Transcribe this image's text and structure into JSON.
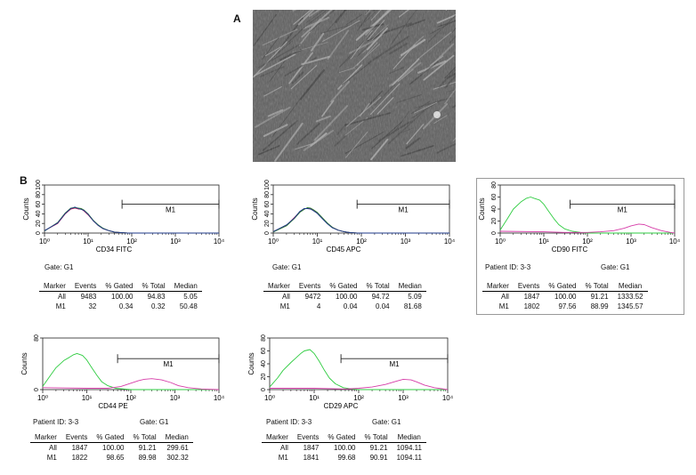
{
  "panel_a_label": "A",
  "panel_b_label": "B",
  "table_headers": [
    "Marker",
    "Events",
    "% Gated",
    "% Total",
    "Median"
  ],
  "chart_data": [
    {
      "type": "area",
      "id": "cd34",
      "xlabel": "CD34 FITC",
      "ylabel": "Counts",
      "x_scale": "log",
      "xlim": [
        1,
        10000
      ],
      "ylim": [
        0,
        100
      ],
      "yticks": [
        0,
        20,
        40,
        60,
        80,
        100
      ],
      "xticks": [
        "10⁰",
        "10¹",
        "10²",
        "10³",
        "10⁴"
      ],
      "gate_label": "M1",
      "gate_range": [
        60,
        10000
      ],
      "gate_y": 60,
      "series": [
        {
          "color": "#c2185b",
          "x": [
            1,
            2,
            3,
            4,
            5,
            6,
            7,
            8,
            10,
            13,
            17,
            22,
            30,
            40,
            55,
            80
          ],
          "y": [
            5,
            20,
            40,
            50,
            52,
            50,
            50,
            46,
            38,
            26,
            16,
            9,
            5,
            2,
            1,
            0
          ]
        },
        {
          "color": "#2e7d32",
          "x": [
            1,
            2,
            3,
            4,
            5,
            6,
            7,
            8,
            10,
            13,
            17,
            22,
            30,
            40,
            55,
            80
          ],
          "y": [
            4,
            22,
            42,
            52,
            53,
            52,
            51,
            48,
            40,
            27,
            17,
            10,
            5,
            2,
            1,
            0
          ]
        },
        {
          "color": "#1e3a8a",
          "x": [
            1,
            2,
            3,
            4,
            5,
            6,
            7,
            8,
            10,
            13,
            17,
            22,
            30,
            40,
            55,
            80
          ],
          "y": [
            5,
            21,
            41,
            51,
            54,
            51,
            49,
            47,
            39,
            26,
            16,
            9,
            5,
            2,
            1,
            0
          ]
        }
      ],
      "header_lines": [],
      "gate_text": "Gate: G1",
      "rows": [
        [
          "All",
          "9483",
          "100.00",
          "94.83",
          "5.05"
        ],
        [
          "M1",
          "32",
          "0.34",
          "0.32",
          "50.48"
        ]
      ]
    },
    {
      "type": "area",
      "id": "cd45",
      "xlabel": "CD45 APC",
      "ylabel": "Counts",
      "x_scale": "log",
      "xlim": [
        1,
        10000
      ],
      "ylim": [
        0,
        100
      ],
      "yticks": [
        0,
        20,
        40,
        60,
        80,
        100
      ],
      "xticks": [
        "10⁰",
        "10¹",
        "10²",
        "10³",
        "10⁴"
      ],
      "gate_label": "M1",
      "gate_range": [
        80,
        10000
      ],
      "gate_y": 60,
      "series": [
        {
          "color": "#c2185b",
          "x": [
            1,
            2,
            3,
            4,
            5,
            6,
            7,
            8,
            10,
            13,
            17,
            22,
            30,
            40,
            55,
            80
          ],
          "y": [
            3,
            16,
            32,
            44,
            50,
            52,
            51,
            48,
            42,
            31,
            20,
            12,
            6,
            3,
            1,
            0
          ]
        },
        {
          "color": "#2e7d32",
          "x": [
            1,
            2,
            3,
            4,
            5,
            6,
            7,
            8,
            10,
            13,
            17,
            22,
            30,
            40,
            55,
            80
          ],
          "y": [
            2,
            15,
            30,
            43,
            49,
            53,
            52,
            49,
            43,
            32,
            21,
            12,
            6,
            3,
            1,
            0
          ]
        },
        {
          "color": "#1e3a8a",
          "x": [
            1,
            2,
            3,
            4,
            5,
            6,
            7,
            8,
            10,
            13,
            17,
            22,
            30,
            40,
            55,
            80
          ],
          "y": [
            3,
            17,
            31,
            45,
            51,
            51,
            50,
            47,
            41,
            30,
            19,
            11,
            6,
            3,
            1,
            0
          ]
        }
      ],
      "header_lines": [],
      "gate_text": "Gate: G1",
      "rows": [
        [
          "All",
          "9472",
          "100.00",
          "94.72",
          "5.09"
        ],
        [
          "M1",
          "4",
          "0.04",
          "0.04",
          "81.68"
        ]
      ]
    },
    {
      "type": "area",
      "id": "cd90",
      "xlabel": "CD90 FITC",
      "ylabel": "Counts",
      "x_scale": "log",
      "xlim": [
        1,
        10000
      ],
      "ylim": [
        0,
        80
      ],
      "yticks": [
        0,
        20,
        40,
        60,
        80
      ],
      "xticks": [
        "10⁰",
        "10¹",
        "10²",
        "10³",
        "10⁴"
      ],
      "gate_label": "M1",
      "gate_range": [
        40,
        10000
      ],
      "gate_y": 48,
      "series": [
        {
          "color": "#2ecc40",
          "x": [
            1,
            1.5,
            2,
            3,
            4,
            5,
            6,
            8,
            10,
            13,
            17,
            22,
            30,
            45,
            70,
            100
          ],
          "y": [
            5,
            25,
            40,
            52,
            58,
            60,
            58,
            55,
            48,
            36,
            24,
            14,
            7,
            3,
            1,
            0
          ]
        },
        {
          "color": "#d63ca8",
          "x": [
            1,
            10,
            30,
            100,
            200,
            400,
            700,
            1000,
            1500,
            2000,
            3000,
            5000,
            8000,
            10000
          ],
          "y": [
            3,
            2,
            1,
            1,
            2,
            4,
            8,
            12,
            15,
            14,
            9,
            4,
            1,
            0
          ]
        }
      ],
      "header_lines": [
        "Patient ID: 3-3",
        "Gate: G1"
      ],
      "gate_text": "",
      "rows": [
        [
          "All",
          "1847",
          "100.00",
          "91.21",
          "1333.52"
        ],
        [
          "M1",
          "1802",
          "97.56",
          "88.99",
          "1345.57"
        ]
      ]
    },
    {
      "type": "area",
      "id": "cd44",
      "xlabel": "CD44 PE",
      "ylabel": "Counts",
      "x_scale": "log",
      "xlim": [
        1,
        10000
      ],
      "ylim": [
        0,
        80
      ],
      "yticks": [
        0,
        80
      ],
      "xticks": [
        "10⁰",
        "10¹",
        "10²",
        "10³",
        "10⁴"
      ],
      "gate_label": "M1",
      "gate_range": [
        50,
        10000
      ],
      "gate_y": 48,
      "series": [
        {
          "color": "#2ecc40",
          "x": [
            1,
            1.5,
            2,
            3,
            4,
            5,
            6,
            8,
            10,
            13,
            17,
            22,
            30,
            45,
            70,
            100
          ],
          "y": [
            5,
            22,
            34,
            45,
            50,
            54,
            56,
            53,
            46,
            34,
            22,
            12,
            6,
            2,
            1,
            0
          ]
        },
        {
          "color": "#d63ca8",
          "x": [
            1,
            10,
            30,
            60,
            100,
            150,
            200,
            300,
            500,
            800,
            1200,
            2000,
            4000,
            10000
          ],
          "y": [
            3,
            2,
            2,
            5,
            10,
            14,
            16,
            17,
            15,
            11,
            6,
            3,
            1,
            0
          ]
        }
      ],
      "header_lines": [
        "Patient ID: 3-3",
        "Gate: G1"
      ],
      "gate_text": "",
      "rows": [
        [
          "All",
          "1847",
          "100.00",
          "91.21",
          "299.61"
        ],
        [
          "M1",
          "1822",
          "98.65",
          "89.98",
          "302.32"
        ]
      ]
    },
    {
      "type": "area",
      "id": "cd29",
      "xlabel": "CD29 APC",
      "ylabel": "Counts",
      "x_scale": "log",
      "xlim": [
        1,
        10000
      ],
      "ylim": [
        0,
        80
      ],
      "yticks": [
        0,
        20,
        40,
        60,
        80
      ],
      "xticks": [
        "10⁰",
        "10¹",
        "10²",
        "10³",
        "10⁴"
      ],
      "gate_label": "M1",
      "gate_range": [
        40,
        10000
      ],
      "gate_y": 48,
      "series": [
        {
          "color": "#2ecc40",
          "x": [
            1,
            1.5,
            2,
            3,
            4,
            5,
            6,
            8,
            10,
            13,
            17,
            22,
            30,
            45,
            70,
            100
          ],
          "y": [
            4,
            18,
            30,
            42,
            50,
            56,
            60,
            62,
            56,
            44,
            30,
            18,
            9,
            3,
            1,
            0
          ]
        },
        {
          "color": "#d63ca8",
          "x": [
            1,
            10,
            50,
            100,
            200,
            400,
            700,
            1000,
            1500,
            2000,
            3000,
            5000,
            10000
          ],
          "y": [
            2,
            2,
            1,
            2,
            4,
            8,
            13,
            16,
            15,
            12,
            7,
            3,
            0
          ]
        }
      ],
      "header_lines": [
        "Patient ID: 3-3",
        "Gate: G1"
      ],
      "gate_text": "",
      "rows": [
        [
          "All",
          "1847",
          "100.00",
          "91.21",
          "1094.11"
        ],
        [
          "M1",
          "1841",
          "99.68",
          "90.91",
          "1094.11"
        ]
      ]
    }
  ]
}
